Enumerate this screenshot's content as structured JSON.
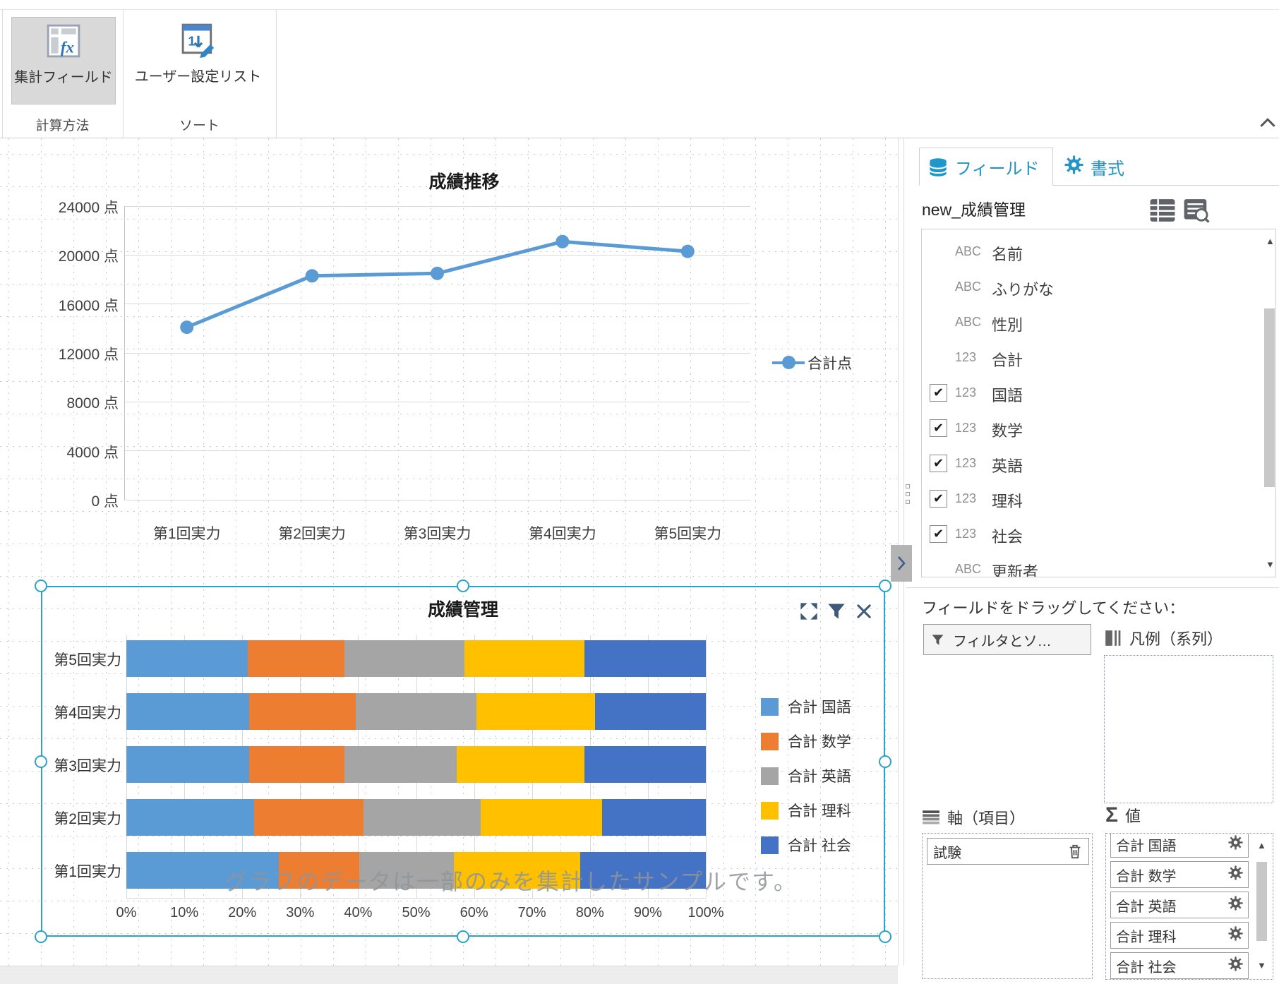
{
  "toolbar": {
    "buttons": [
      {
        "label": "集計フィールド",
        "selected": true
      },
      {
        "label": "ユーザー設定リスト",
        "selected": false
      }
    ],
    "groups": [
      "計算方法",
      "ソート"
    ]
  },
  "chart_data": [
    {
      "type": "line",
      "title": "成績推移",
      "categories": [
        "第1回実力",
        "第2回実力",
        "第3回実力",
        "第4回実力",
        "第5回実力"
      ],
      "series": [
        {
          "name": "合計点",
          "color": "#5B9BD5",
          "values": [
            14100,
            18300,
            18500,
            21100,
            20300
          ]
        }
      ],
      "yticks": [
        0,
        4000,
        8000,
        12000,
        16000,
        20000,
        24000
      ],
      "ytick_suffix": "点",
      "ylim": [
        0,
        24000
      ],
      "grid": "horizontal",
      "legend_position": "right"
    },
    {
      "type": "stacked-bar-horizontal",
      "title": "成績管理",
      "unit": "percent",
      "categories": [
        "第5回実力",
        "第4回実力",
        "第3回実力",
        "第2回実力",
        "第1回実力"
      ],
      "series": [
        {
          "name": "合計 国語",
          "color": "#5B9BD5",
          "values": [
            20.9,
            21.2,
            21.2,
            22.0,
            26.3
          ]
        },
        {
          "name": "合計 数学",
          "color": "#ED7D31",
          "values": [
            16.7,
            18.4,
            16.4,
            18.9,
            13.9
          ]
        },
        {
          "name": "合計 英語",
          "color": "#A5A5A5",
          "values": [
            20.8,
            20.8,
            19.4,
            20.3,
            16.3
          ]
        },
        {
          "name": "合計 理科",
          "color": "#FFC000",
          "values": [
            20.6,
            20.5,
            22.0,
            20.9,
            21.8
          ]
        },
        {
          "name": "合計 社会",
          "color": "#4472C4",
          "values": [
            21.0,
            19.1,
            21.0,
            17.9,
            21.7
          ]
        }
      ],
      "xticks": [
        "0%",
        "10%",
        "20%",
        "30%",
        "40%",
        "50%",
        "60%",
        "70%",
        "80%",
        "90%",
        "100%"
      ],
      "xlim": [
        0,
        100
      ],
      "grid": "vertical",
      "legend_position": "right",
      "watermark": "グラフのデータは一部のみを集計したサンプルです。",
      "selected": true
    }
  ],
  "side_panel": {
    "tabs": [
      {
        "label": "フィールド",
        "icon": "database-icon",
        "active": true
      },
      {
        "label": "書式",
        "icon": "gear-icon",
        "active": false
      }
    ],
    "dataset_name": "new_成績管理",
    "dataset_tools": [
      "table-view-icon",
      "record-search-icon"
    ],
    "fields": [
      {
        "type": "ABC",
        "name": "名前"
      },
      {
        "type": "ABC",
        "name": "ふりがな"
      },
      {
        "type": "ABC",
        "name": "性別"
      },
      {
        "type": "123",
        "name": "合計"
      },
      {
        "type": "123",
        "name": "国語",
        "checked": true
      },
      {
        "type": "123",
        "name": "数学",
        "checked": true
      },
      {
        "type": "123",
        "name": "英語",
        "checked": true
      },
      {
        "type": "123",
        "name": "理科",
        "checked": true
      },
      {
        "type": "123",
        "name": "社会",
        "checked": true
      },
      {
        "type": "ABC",
        "name": "更新者"
      }
    ],
    "drag_hint": "フィールドをドラッグしてください：",
    "filter_sort_button": "フィルタとソ…",
    "legend_section_label": "凡例（系列）",
    "axis_section_label": "軸（項目）",
    "axis_items": [
      {
        "label": "試験"
      }
    ],
    "value_section_label": "値",
    "value_sigma": "Σ",
    "value_items": [
      "合計 国語",
      "合計 数学",
      "合計 英語",
      "合計 理科",
      "合計 社会"
    ]
  },
  "colors": {
    "accent_tab": "#2394C4",
    "selection_border": "#2BA3C7",
    "widget_icon": "#3E5A7A",
    "series": [
      "#5B9BD5",
      "#ED7D31",
      "#A5A5A5",
      "#FFC000",
      "#4472C4"
    ]
  }
}
